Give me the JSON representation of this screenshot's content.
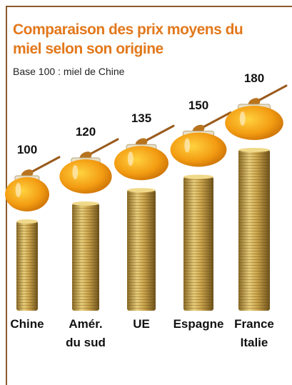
{
  "chart_data": {
    "type": "bar",
    "title": "Comparaison des prix moyens du miel selon son origine",
    "subtitle": "Base 100 : miel de Chine",
    "categories": [
      "Chine",
      "Amér.\ndu sud",
      "UE",
      "Espagne",
      "France\nItalie"
    ],
    "values": [
      100,
      120,
      135,
      150,
      180
    ],
    "color": "#c9a24a"
  }
}
